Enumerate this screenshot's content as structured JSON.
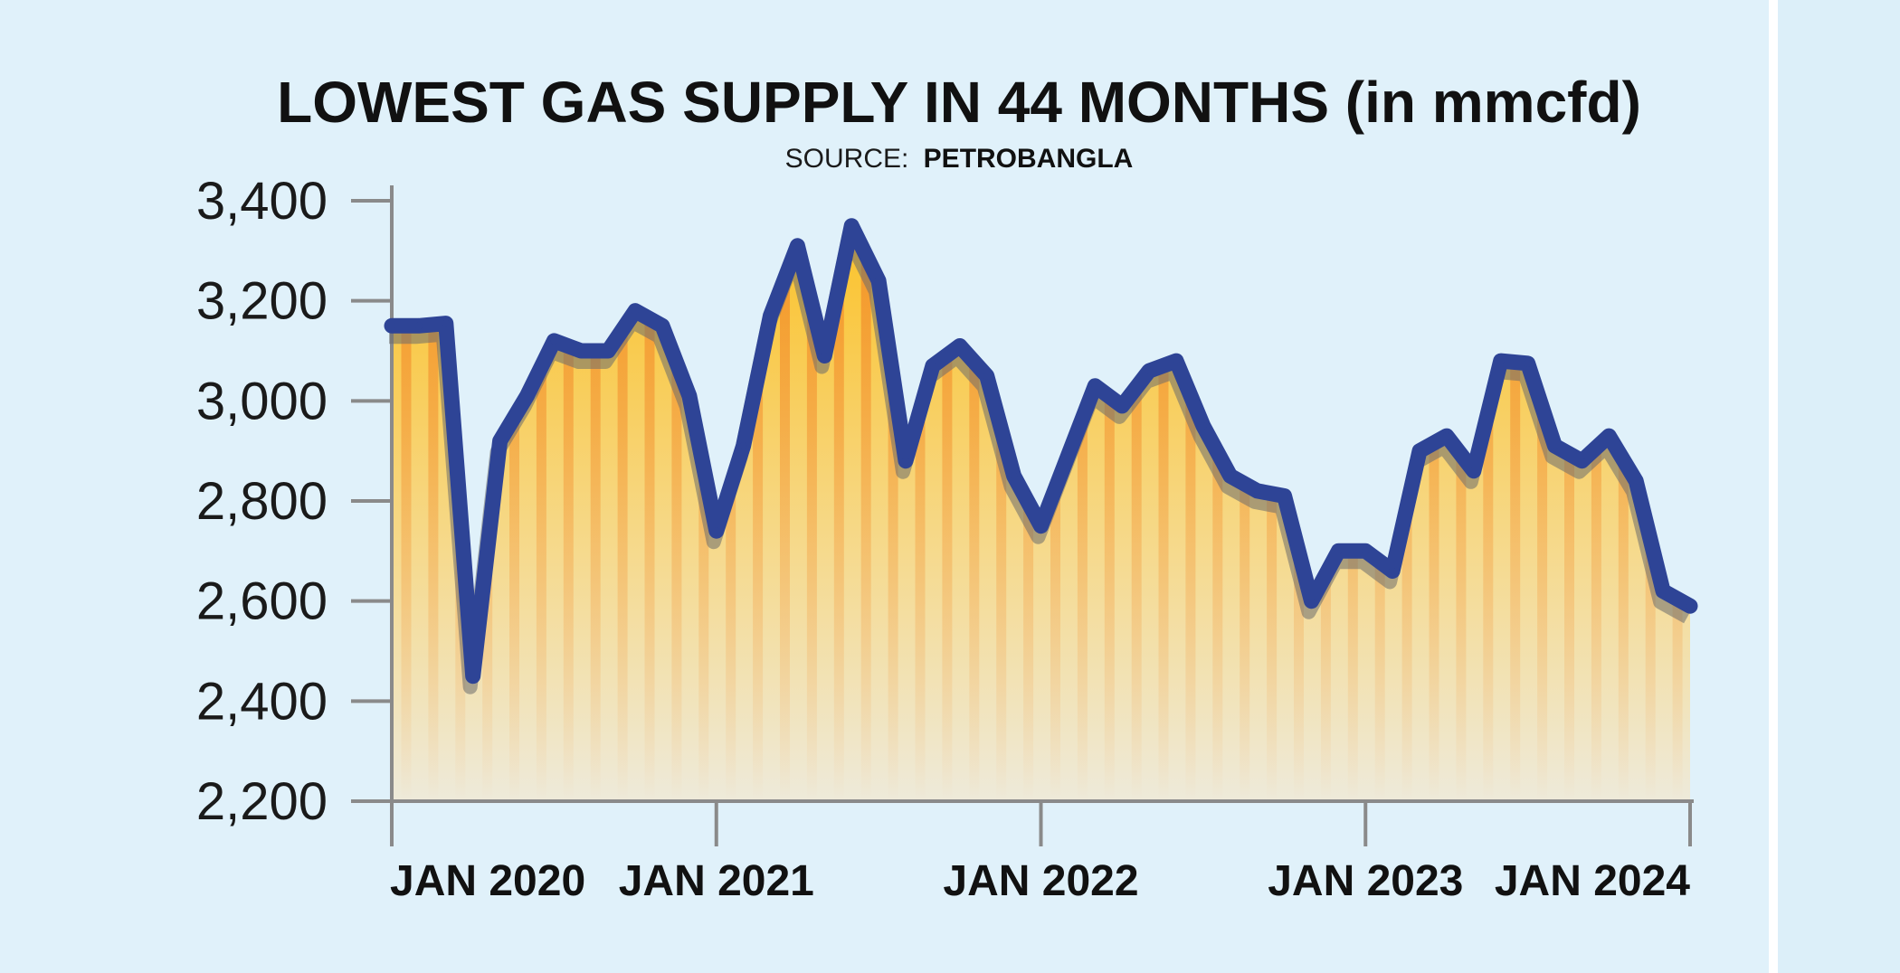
{
  "chart_data": {
    "type": "area",
    "title": "LOWEST GAS SUPPLY IN 44 MONTHS (in mmcfd)",
    "source_prefix": "SOURCE:",
    "source_name": "PETROBANGLA",
    "xlabel": "",
    "ylabel": "",
    "ylim": [
      2200,
      3400
    ],
    "yticks": [
      "3,400",
      "3,200",
      "3,000",
      "2,800",
      "2,600",
      "2,400",
      "2,200"
    ],
    "ytick_values": [
      3400,
      3200,
      3000,
      2800,
      2600,
      2400,
      2200
    ],
    "xticks": [
      "JAN 2020",
      "JAN 2021",
      "JAN 2022",
      "JAN 2023",
      "JAN 2024"
    ],
    "xtick_months": [
      0,
      12,
      24,
      36,
      48
    ],
    "grid": false,
    "series": [
      {
        "months": [
          0,
          1,
          2,
          3,
          4,
          5,
          6,
          7,
          8,
          9,
          10,
          11,
          12,
          13,
          14,
          15,
          16,
          17,
          18,
          19,
          20,
          21,
          22,
          23,
          24,
          25,
          26,
          27,
          28,
          29,
          30,
          31,
          32,
          33,
          34,
          35,
          36,
          37,
          38,
          39,
          40,
          41,
          42,
          43,
          44,
          45,
          46,
          47,
          48
        ],
        "values": [
          3150,
          3150,
          3155,
          2450,
          2920,
          3010,
          3120,
          3100,
          3100,
          3180,
          3150,
          3010,
          2740,
          2910,
          3170,
          3310,
          3090,
          3350,
          3240,
          2880,
          3070,
          3110,
          3050,
          2850,
          2750,
          2890,
          3030,
          2990,
          3060,
          3080,
          2950,
          2850,
          2820,
          2810,
          2600,
          2700,
          2700,
          2660,
          2900,
          2930,
          2860,
          3080,
          3075,
          2910,
          2880,
          2930,
          2840,
          2620,
          2590
        ]
      }
    ],
    "colors": {
      "line": "#2e4496",
      "fill_top": "#fbc22a",
      "fill_bottom": "#eeeada",
      "stripe": "#f28a2a",
      "axis": "#8a8a8a",
      "background": "#e0f1fa"
    }
  }
}
